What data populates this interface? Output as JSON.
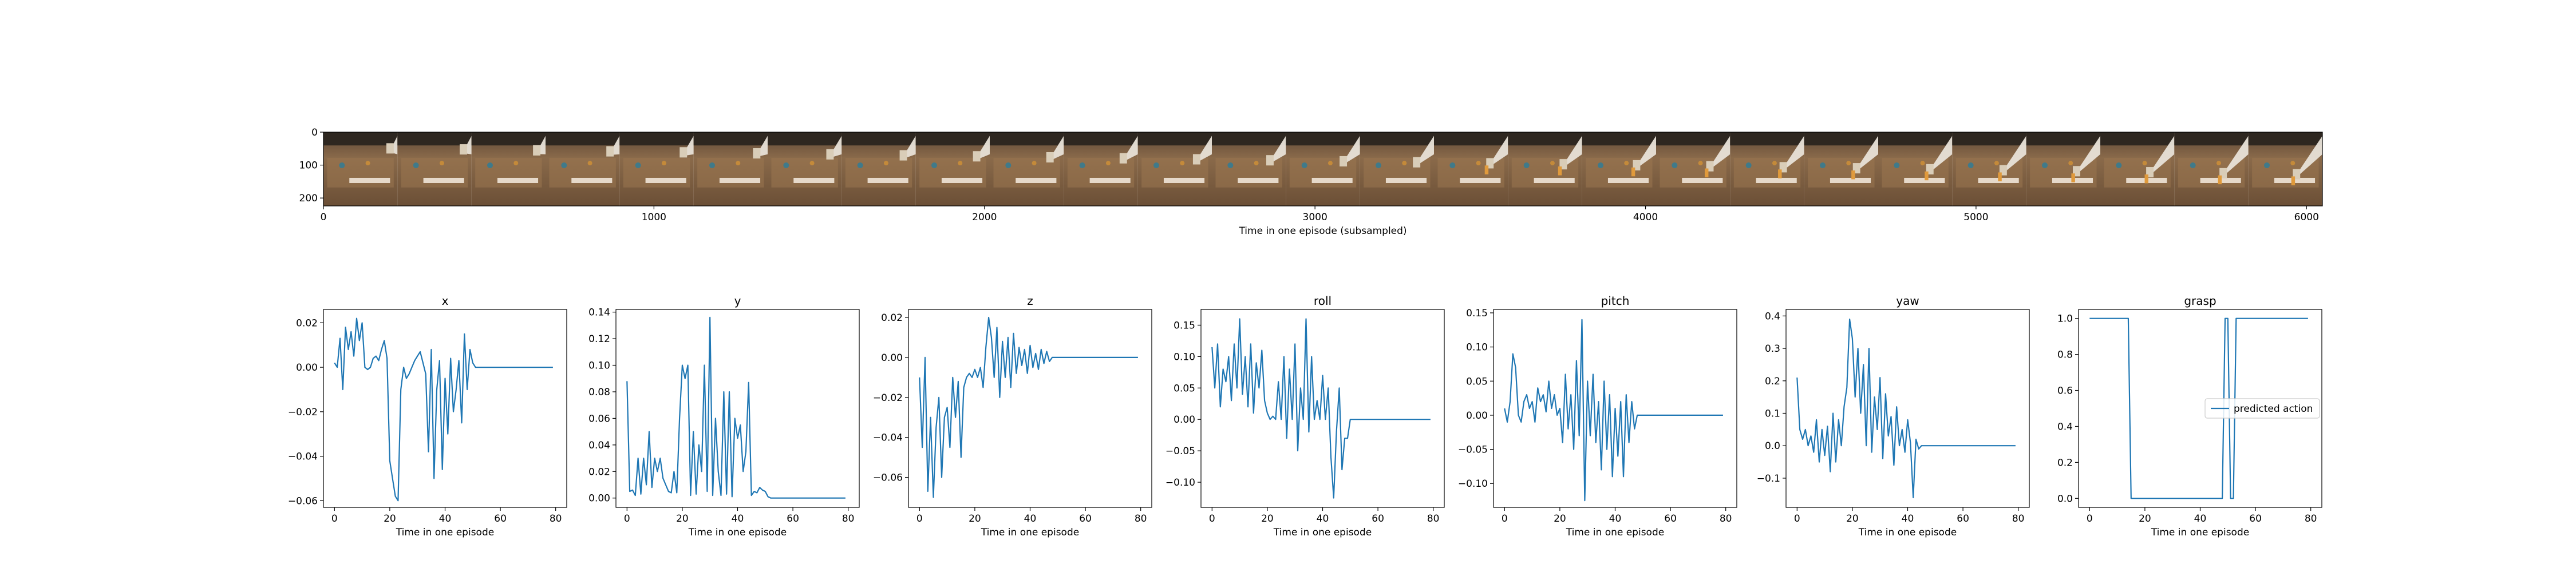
{
  "colors": {
    "series": "#1f77b4",
    "frame": "#000000"
  },
  "strip": {
    "xlabel": "Time in one episode (subsampled)",
    "xticks": [
      0,
      1000,
      2000,
      3000,
      4000,
      5000,
      6000
    ],
    "yticks": [
      0,
      100,
      200
    ],
    "xlim": [
      0,
      6048
    ],
    "ylim": [
      0,
      224
    ],
    "frame_count": 27
  },
  "chart_data": [
    {
      "type": "line",
      "title": "x",
      "xlabel": "Time in one episode",
      "xlim": [
        -4,
        84
      ],
      "ylim": [
        -0.063,
        0.026
      ],
      "xticks": [
        0,
        20,
        40,
        60,
        80
      ],
      "yticks": [
        0.02,
        0.0,
        -0.02,
        -0.04,
        -0.06
      ],
      "ytick_labels": [
        "0.02",
        "0.00",
        "−0.02",
        "−0.04",
        "−0.06"
      ],
      "y": [
        0.002,
        0.0,
        0.013,
        -0.01,
        0.018,
        0.008,
        0.016,
        0.005,
        0.022,
        0.012,
        0.02,
        0.0,
        -0.001,
        0.0,
        0.004,
        0.005,
        0.003,
        0.008,
        0.012,
        0.004,
        -0.042,
        -0.05,
        -0.058,
        -0.06,
        -0.01,
        0.0,
        -0.005,
        -0.003,
        0.0,
        0.003,
        0.005,
        0.007,
        0.002,
        -0.003,
        -0.038,
        0.008,
        -0.05,
        -0.01,
        0.003,
        -0.046,
        -0.005,
        -0.03,
        0.004,
        -0.02,
        -0.01,
        0.003,
        -0.025,
        0.015,
        -0.01,
        0.008,
        0.002,
        0.0,
        0.0,
        0.0,
        0.0,
        0.0,
        0.0,
        0.0,
        0.0,
        0.0,
        0.0,
        0.0,
        0.0,
        0.0,
        0.0,
        0.0,
        0.0,
        0.0,
        0.0,
        0.0,
        0.0,
        0.0,
        0.0,
        0.0,
        0.0,
        0.0,
        0.0,
        0.0,
        0.0,
        0.0
      ]
    },
    {
      "type": "line",
      "title": "y",
      "xlabel": "Time in one episode",
      "xlim": [
        -4,
        84
      ],
      "ylim": [
        -0.007,
        0.142
      ],
      "xticks": [
        0,
        20,
        40,
        60,
        80
      ],
      "yticks": [
        0.0,
        0.02,
        0.04,
        0.06,
        0.08,
        0.1,
        0.12,
        0.14
      ],
      "ytick_labels": [
        "0.00",
        "0.02",
        "0.04",
        "0.06",
        "0.08",
        "0.10",
        "0.12",
        "0.14"
      ],
      "y": [
        0.088,
        0.005,
        0.006,
        0.002,
        0.03,
        0.003,
        0.03,
        0.01,
        0.05,
        0.008,
        0.03,
        0.02,
        0.03,
        0.015,
        0.01,
        0.005,
        0.004,
        0.02,
        0.004,
        0.06,
        0.1,
        0.09,
        0.1,
        0.002,
        0.05,
        0.003,
        0.04,
        0.02,
        0.1,
        0.005,
        0.136,
        0.002,
        0.06,
        0.02,
        0.002,
        0.08,
        0.003,
        0.08,
        0.001,
        0.06,
        0.045,
        0.055,
        0.02,
        0.035,
        0.087,
        0.002,
        0.005,
        0.004,
        0.008,
        0.006,
        0.005,
        0.001,
        0.0,
        0.0,
        0.0,
        0.0,
        0.0,
        0.0,
        0.0,
        0.0,
        0.0,
        0.0,
        0.0,
        0.0,
        0.0,
        0.0,
        0.0,
        0.0,
        0.0,
        0.0,
        0.0,
        0.0,
        0.0,
        0.0,
        0.0,
        0.0,
        0.0,
        0.0,
        0.0,
        0.0
      ]
    },
    {
      "type": "line",
      "title": "z",
      "xlabel": "Time in one episode",
      "xlim": [
        -4,
        84
      ],
      "ylim": [
        -0.075,
        0.024
      ],
      "xticks": [
        0,
        20,
        40,
        60,
        80
      ],
      "yticks": [
        0.02,
        0.0,
        -0.02,
        -0.04,
        -0.06
      ],
      "ytick_labels": [
        "0.02",
        "0.00",
        "−0.02",
        "−0.04",
        "−0.06"
      ],
      "y": [
        -0.01,
        -0.045,
        0.0,
        -0.067,
        -0.03,
        -0.07,
        -0.035,
        -0.02,
        -0.06,
        -0.03,
        -0.025,
        -0.045,
        -0.01,
        -0.03,
        -0.012,
        -0.05,
        -0.015,
        -0.01,
        -0.008,
        -0.01,
        -0.006,
        -0.01,
        -0.005,
        -0.015,
        0.005,
        0.02,
        0.01,
        -0.01,
        0.015,
        -0.02,
        0.008,
        -0.01,
        0.01,
        -0.015,
        0.012,
        -0.008,
        0.005,
        -0.004,
        0.004,
        -0.008,
        0.006,
        -0.005,
        0.002,
        -0.006,
        0.004,
        -0.003,
        0.003,
        -0.002,
        0.0,
        0.0,
        0.0,
        0.0,
        0.0,
        0.0,
        0.0,
        0.0,
        0.0,
        0.0,
        0.0,
        0.0,
        0.0,
        0.0,
        0.0,
        0.0,
        0.0,
        0.0,
        0.0,
        0.0,
        0.0,
        0.0,
        0.0,
        0.0,
        0.0,
        0.0,
        0.0,
        0.0,
        0.0,
        0.0,
        0.0,
        0.0
      ]
    },
    {
      "type": "line",
      "title": "roll",
      "xlabel": "Time in one episode",
      "xlim": [
        -4,
        84
      ],
      "ylim": [
        -0.14,
        0.175
      ],
      "xticks": [
        0,
        20,
        40,
        60,
        80
      ],
      "yticks": [
        0.15,
        0.1,
        0.05,
        0.0,
        -0.05,
        -0.1
      ],
      "ytick_labels": [
        "0.15",
        "0.10",
        "0.05",
        "0.00",
        "−0.05",
        "−0.10"
      ],
      "y": [
        0.115,
        0.05,
        0.12,
        0.02,
        0.08,
        0.06,
        0.1,
        0.03,
        0.12,
        0.05,
        0.16,
        0.04,
        0.1,
        0.02,
        0.12,
        0.01,
        0.09,
        0.05,
        0.11,
        0.03,
        0.01,
        0.0,
        0.005,
        0.0,
        0.06,
        0.0,
        0.1,
        -0.03,
        0.08,
        0.0,
        0.12,
        -0.05,
        0.05,
        0.0,
        0.16,
        -0.02,
        0.1,
        0.0,
        0.03,
        0.0,
        0.07,
        0.0,
        0.05,
        -0.06,
        -0.125,
        -0.02,
        0.05,
        -0.08,
        -0.03,
        -0.03,
        0.0,
        0.0,
        0.0,
        0.0,
        0.0,
        0.0,
        0.0,
        0.0,
        0.0,
        0.0,
        0.0,
        0.0,
        0.0,
        0.0,
        0.0,
        0.0,
        0.0,
        0.0,
        0.0,
        0.0,
        0.0,
        0.0,
        0.0,
        0.0,
        0.0,
        0.0,
        0.0,
        0.0,
        0.0,
        0.0
      ]
    },
    {
      "type": "line",
      "title": "pitch",
      "xlabel": "Time in one episode",
      "xlim": [
        -4,
        84
      ],
      "ylim": [
        -0.135,
        0.155
      ],
      "xticks": [
        0,
        20,
        40,
        60,
        80
      ],
      "yticks": [
        0.15,
        0.1,
        0.05,
        0.0,
        -0.05,
        -0.1
      ],
      "ytick_labels": [
        "0.15",
        "0.10",
        "0.05",
        "0.00",
        "−0.05",
        "−0.10"
      ],
      "y": [
        0.01,
        -0.01,
        0.02,
        0.09,
        0.07,
        0.0,
        -0.01,
        0.02,
        0.03,
        0.01,
        0.02,
        -0.01,
        0.04,
        0.02,
        0.03,
        0.005,
        0.05,
        0.01,
        0.03,
        0.0,
        0.01,
        -0.04,
        0.06,
        -0.02,
        0.03,
        -0.05,
        0.08,
        -0.03,
        0.14,
        -0.125,
        0.05,
        -0.03,
        0.06,
        -0.04,
        0.02,
        -0.08,
        0.05,
        -0.05,
        0.03,
        -0.09,
        0.01,
        -0.06,
        0.02,
        -0.09,
        0.03,
        -0.04,
        0.02,
        -0.02,
        0.0,
        0.0,
        0.0,
        0.0,
        0.0,
        0.0,
        0.0,
        0.0,
        0.0,
        0.0,
        0.0,
        0.0,
        0.0,
        0.0,
        0.0,
        0.0,
        0.0,
        0.0,
        0.0,
        0.0,
        0.0,
        0.0,
        0.0,
        0.0,
        0.0,
        0.0,
        0.0,
        0.0,
        0.0,
        0.0,
        0.0,
        0.0
      ]
    },
    {
      "type": "line",
      "title": "yaw",
      "xlabel": "Time in one episode",
      "xlim": [
        -4,
        84
      ],
      "ylim": [
        -0.19,
        0.42
      ],
      "xticks": [
        0,
        20,
        40,
        60,
        80
      ],
      "yticks": [
        0.4,
        0.3,
        0.2,
        0.1,
        0.0,
        -0.1
      ],
      "ytick_labels": [
        "0.4",
        "0.3",
        "0.2",
        "0.1",
        "0.0",
        "−0.1"
      ],
      "y": [
        0.21,
        0.05,
        0.02,
        0.05,
        0.0,
        0.03,
        -0.02,
        0.08,
        -0.05,
        0.05,
        -0.03,
        0.06,
        -0.08,
        0.1,
        -0.05,
        0.08,
        0.0,
        0.12,
        0.18,
        0.39,
        0.33,
        0.15,
        0.3,
        0.1,
        0.25,
        0.0,
        0.3,
        -0.02,
        0.15,
        0.05,
        0.21,
        -0.04,
        0.16,
        0.03,
        0.09,
        -0.06,
        0.12,
        0.0,
        0.05,
        -0.02,
        0.08,
        0.01,
        -0.16,
        0.02,
        -0.01,
        0.0,
        0.0,
        0.0,
        0.0,
        0.0,
        0.0,
        0.0,
        0.0,
        0.0,
        0.0,
        0.0,
        0.0,
        0.0,
        0.0,
        0.0,
        0.0,
        0.0,
        0.0,
        0.0,
        0.0,
        0.0,
        0.0,
        0.0,
        0.0,
        0.0,
        0.0,
        0.0,
        0.0,
        0.0,
        0.0,
        0.0,
        0.0,
        0.0,
        0.0,
        0.0
      ]
    },
    {
      "type": "line",
      "title": "grasp",
      "xlabel": "Time in one episode",
      "xlim": [
        -4,
        84
      ],
      "ylim": [
        -0.05,
        1.05
      ],
      "xticks": [
        0,
        20,
        40,
        60,
        80
      ],
      "yticks": [
        1.0,
        0.8,
        0.6,
        0.4,
        0.2,
        0.0
      ],
      "ytick_labels": [
        "1.0",
        "0.8",
        "0.6",
        "0.4",
        "0.2",
        "0.0"
      ],
      "legend": "predicted action",
      "legend_loc": "center right",
      "y": [
        1,
        1,
        1,
        1,
        1,
        1,
        1,
        1,
        1,
        1,
        1,
        1,
        1,
        1,
        1,
        0,
        0,
        0,
        0,
        0,
        0,
        0,
        0,
        0,
        0,
        0,
        0,
        0,
        0,
        0,
        0,
        0,
        0,
        0,
        0,
        0,
        0,
        0,
        0,
        0,
        0,
        0,
        0,
        0,
        0,
        0,
        0,
        0,
        0,
        1,
        1,
        0,
        0,
        1,
        1,
        1,
        1,
        1,
        1,
        1,
        1,
        1,
        1,
        1,
        1,
        1,
        1,
        1,
        1,
        1,
        1,
        1,
        1,
        1,
        1,
        1,
        1,
        1,
        1,
        1
      ]
    }
  ]
}
